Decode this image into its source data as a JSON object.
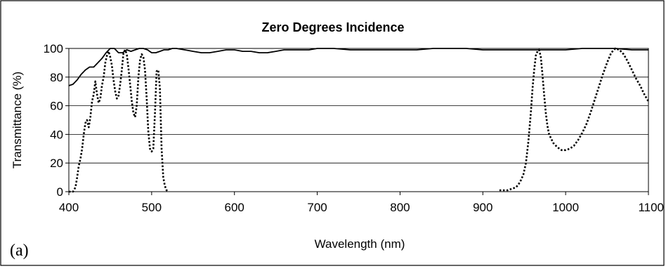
{
  "chart_data": {
    "type": "line",
    "title": "Zero Degrees Incidence",
    "xlabel": "Wavelength (nm)",
    "ylabel": "Transmittance (%)",
    "panel_label": "(a)",
    "xlim": [
      400,
      1100
    ],
    "ylim": [
      0,
      100
    ],
    "xticks": [
      400,
      500,
      600,
      700,
      800,
      900,
      1000,
      1100
    ],
    "yticks": [
      0,
      20,
      40,
      60,
      80,
      100
    ],
    "grid": "horizontal",
    "legend": "none",
    "series": [
      {
        "style": "solid",
        "color": "#000000",
        "x": [
          400,
          405,
          410,
          415,
          420,
          425,
          430,
          435,
          440,
          445,
          450,
          455,
          460,
          465,
          470,
          475,
          480,
          485,
          490,
          495,
          500,
          505,
          510,
          515,
          520,
          525,
          530,
          540,
          550,
          560,
          570,
          580,
          590,
          600,
          610,
          620,
          630,
          640,
          650,
          660,
          670,
          680,
          690,
          700,
          720,
          740,
          760,
          780,
          800,
          820,
          840,
          860,
          880,
          900,
          920,
          940,
          960,
          980,
          1000,
          1020,
          1040,
          1060,
          1080,
          1100
        ],
        "y": [
          74,
          75,
          78,
          82,
          85,
          87,
          87,
          90,
          93,
          97,
          100,
          100,
          97,
          97,
          99,
          98,
          99,
          100,
          100,
          99,
          97,
          97,
          98,
          99,
          99,
          100,
          100,
          99,
          98,
          97,
          97,
          98,
          99,
          99,
          98,
          98,
          97,
          97,
          98,
          99,
          99,
          99,
          99,
          100,
          100,
          99,
          99,
          99,
          99,
          99,
          100,
          100,
          100,
          99,
          99,
          99,
          99,
          99,
          99,
          100,
          100,
          100,
          99,
          99
        ]
      },
      {
        "style": "dotted",
        "color": "#000000",
        "x": [
          400,
          405,
          408,
          410,
          412,
          414,
          416,
          418,
          420,
          422,
          424,
          426,
          428,
          430,
          432,
          434,
          436,
          438,
          440,
          442,
          444,
          446,
          448,
          450,
          452,
          454,
          456,
          458,
          460,
          462,
          464,
          466,
          468,
          470,
          472,
          474,
          476,
          478,
          480,
          482,
          484,
          486,
          488,
          490,
          492,
          494,
          496,
          498,
          500,
          502,
          504,
          506,
          508,
          510,
          512,
          514,
          516,
          518,
          520
        ],
        "y": [
          0,
          0,
          3,
          10,
          18,
          23,
          30,
          40,
          48,
          50,
          45,
          52,
          63,
          68,
          77,
          68,
          62,
          65,
          74,
          80,
          90,
          95,
          98,
          94,
          88,
          78,
          70,
          65,
          67,
          75,
          85,
          97,
          99,
          96,
          86,
          75,
          63,
          55,
          52,
          60,
          80,
          92,
          96,
          94,
          85,
          65,
          42,
          30,
          28,
          30,
          55,
          84,
          85,
          72,
          30,
          10,
          4,
          1,
          0
        ]
      },
      {
        "style": "dotted",
        "color": "#000000",
        "x": [
          920,
          925,
          930,
          935,
          940,
          943,
          946,
          949,
          952,
          955,
          958,
          960,
          962,
          964,
          966,
          968,
          970,
          972,
          974,
          976,
          978,
          980,
          985,
          990,
          995,
          1000,
          1005,
          1010,
          1015,
          1020,
          1025,
          1030,
          1035,
          1040,
          1045,
          1050,
          1055,
          1060,
          1065,
          1070,
          1075,
          1080,
          1085,
          1090,
          1095,
          1100
        ],
        "y": [
          1,
          1,
          1,
          2,
          3,
          5,
          8,
          12,
          20,
          35,
          55,
          72,
          85,
          95,
          98,
          99,
          94,
          82,
          68,
          55,
          46,
          40,
          34,
          31,
          29,
          29,
          30,
          32,
          36,
          41,
          47,
          55,
          64,
          73,
          82,
          90,
          97,
          100,
          99,
          96,
          91,
          85,
          79,
          74,
          68,
          63
        ]
      }
    ]
  }
}
